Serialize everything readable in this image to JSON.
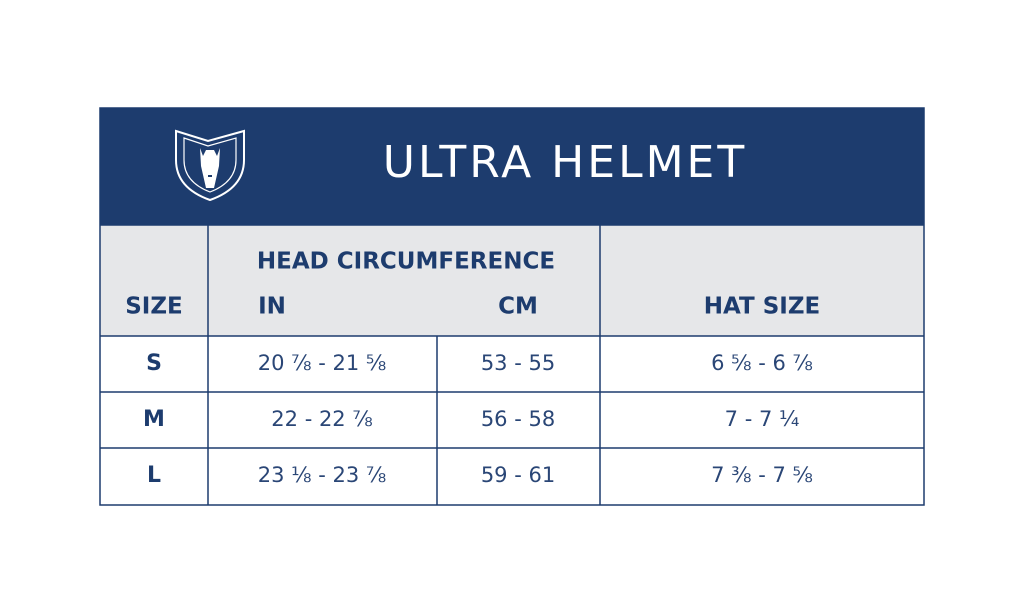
{
  "header": {
    "title": "ULTRA HELMET"
  },
  "table": {
    "columns": {
      "size": "SIZE",
      "group": "HEAD CIRCUMFERENCE",
      "in": "IN",
      "cm": "CM",
      "hat": "HAT SIZE"
    },
    "rows": [
      [
        "S",
        "20 ⅞ - 21 ⅝",
        "53 - 55",
        "6 ⅝ - 6 ⅞"
      ],
      [
        "M",
        "22 - 22 ⅞",
        "56 - 58",
        "7 - 7 ¼"
      ],
      [
        "L",
        "23 ⅛ - 23 ⅞",
        "59 - 61",
        "7 ⅜ - 7 ⅝"
      ]
    ]
  }
}
